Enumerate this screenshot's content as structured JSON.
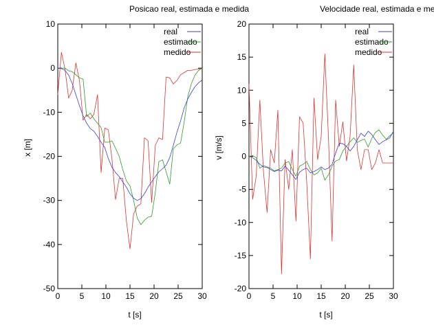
{
  "chart_data": [
    {
      "type": "line",
      "title": "Posicao real, estimada e medida",
      "xlabel": "t [s]",
      "ylabel": "x [m]",
      "xlim": [
        0,
        30
      ],
      "ylim": [
        -50,
        10
      ],
      "xticks": [
        0,
        5,
        10,
        15,
        20,
        25,
        30
      ],
      "yticks": [
        10,
        0,
        -10,
        -20,
        -30,
        -40,
        -50
      ],
      "grid": false,
      "legend": "top-right",
      "x": [
        0,
        0.75,
        1.5,
        2.25,
        3,
        3.75,
        4.5,
        5.25,
        6,
        6.75,
        7.5,
        8.25,
        9,
        9.75,
        10.5,
        11.25,
        12,
        12.75,
        13.5,
        14.25,
        15,
        15.75,
        16.5,
        17.25,
        18,
        18.75,
        19.5,
        20.25,
        21,
        21.75,
        22.5,
        23.25,
        24,
        24.75,
        25.5,
        26.25,
        27,
        27.75,
        28.5,
        29.25,
        30
      ],
      "series": [
        {
          "name": "real",
          "color": "#3b3bd4",
          "values": [
            0,
            -0.1,
            -0.5,
            -1.6,
            -3.5,
            -6,
            -8.5,
            -10.8,
            -12.5,
            -13.7,
            -14.3,
            -15.5,
            -16.8,
            -18,
            -20.5,
            -22.5,
            -23.7,
            -24.6,
            -25.8,
            -27,
            -28.5,
            -29.5,
            -30,
            -29.6,
            -28.5,
            -27,
            -25.8,
            -24.6,
            -23.5,
            -22.8,
            -22,
            -20.3,
            -17.5,
            -14.5,
            -12,
            -9,
            -7,
            -5.5,
            -4.2,
            -3.3,
            -2.7
          ]
        },
        {
          "name": "estimado",
          "color": "#2b9a2b",
          "values": [
            0,
            0,
            0,
            -0.6,
            -0.8,
            -1.5,
            -2.2,
            -2.5,
            -11,
            -10.2,
            -11.5,
            -12.5,
            -13.5,
            -16.8,
            -16.8,
            -16.5,
            -18.2,
            -20,
            -23,
            -25.6,
            -26.7,
            -30,
            -34,
            -35.5,
            -34.5,
            -33.8,
            -33.6,
            -28.2,
            -21.2,
            -20.8,
            -23.5,
            -26.3,
            -18.3,
            -17.4,
            -17,
            -12.2,
            -6.5,
            -3.5,
            -1.6,
            -0.5,
            0
          ]
        },
        {
          "name": "medido",
          "color": "#e03030",
          "values": [
            -6,
            3.6,
            -0.2,
            -6.8,
            -5,
            1.2,
            -2.8,
            -11.8,
            -10.5,
            -11.5,
            -10.5,
            -6,
            -23.7,
            -13.6,
            -14,
            -20.6,
            -29.8,
            -25,
            -25,
            -34.7,
            -41,
            -33,
            -31.3,
            -30.8,
            -15.8,
            -16.5,
            -30.5,
            -17.5,
            -15.8,
            -16.2,
            -2,
            -2.2,
            -3.6,
            -2.8,
            -1.5,
            -1,
            -0.5,
            -0.5,
            -0.3,
            -0.2,
            -0.1
          ]
        }
      ]
    },
    {
      "type": "line",
      "title": "Velocidade real, estimada e medida",
      "xlabel": "t [s]",
      "ylabel": "v [m/s]",
      "xlim": [
        0,
        30
      ],
      "ylim": [
        -20,
        20
      ],
      "xticks": [
        0,
        5,
        10,
        15,
        20,
        25,
        30
      ],
      "yticks": [
        20,
        15,
        10,
        5,
        0,
        -5,
        -10,
        -15,
        -20
      ],
      "grid": false,
      "legend": "top-right",
      "x": [
        0,
        0.75,
        1.5,
        2.25,
        3,
        3.75,
        4.5,
        5.25,
        6,
        6.75,
        7.5,
        8.25,
        9,
        9.75,
        10.5,
        11.25,
        12,
        12.75,
        13.5,
        14.25,
        15,
        15.75,
        16.5,
        17.25,
        18,
        18.75,
        19.5,
        20.25,
        21,
        21.75,
        22.5,
        23.25,
        24,
        24.75,
        25.5,
        26.25,
        27,
        27.75,
        28.5,
        29.25,
        30
      ],
      "series": [
        {
          "name": "real",
          "color": "#3b3bd4",
          "values": [
            0,
            -0.2,
            -0.6,
            -1.2,
            -1.6,
            -1.7,
            -2,
            -2.3,
            -2.1,
            -2.2,
            -1.5,
            -2.1,
            -2.8,
            -3.5,
            -2.4,
            -2,
            -1.8,
            -2.5,
            -2.3,
            -2,
            -1.6,
            -2,
            -1.8,
            -1.2,
            0.5,
            2,
            1.9,
            1.5,
            0.8,
            1.5,
            2.5,
            3.5,
            3,
            3.8,
            3.3,
            2.5,
            1.8,
            2.2,
            2.5,
            2.8,
            3.8
          ]
        },
        {
          "name": "estimado",
          "color": "#2b9a2b",
          "values": [
            0,
            0.1,
            -0.2,
            -1.8,
            -1.4,
            -1.6,
            -1.8,
            -2.2,
            -2,
            -1.8,
            -1,
            -0.8,
            -2,
            -3,
            -1.5,
            -1.2,
            -0.8,
            -2,
            -2.8,
            -2.5,
            -1.8,
            -3.6,
            -2.8,
            -1.5,
            -0.7,
            -0.5,
            0.8,
            1.5,
            2.2,
            2.8,
            2.1,
            2.4,
            2.6,
            1.4,
            2.7,
            3.6,
            4,
            3.2,
            2.6,
            3.1,
            3.6
          ]
        },
        {
          "name": "medido",
          "color": "#e03030",
          "values": [
            11,
            -6.5,
            -3,
            8.5,
            -2.2,
            -8.5,
            1,
            -1,
            7,
            -17.8,
            -0.5,
            -5,
            1,
            -9.8,
            6,
            5,
            -4,
            -15.5,
            8.8,
            -0.5,
            3,
            15.5,
            3,
            -12.8,
            8.5,
            1.5,
            5.2,
            -0.7,
            3,
            13.8,
            1,
            -2,
            1,
            1,
            -2,
            -1,
            1,
            -1,
            -1,
            -1,
            -1
          ]
        }
      ]
    }
  ]
}
